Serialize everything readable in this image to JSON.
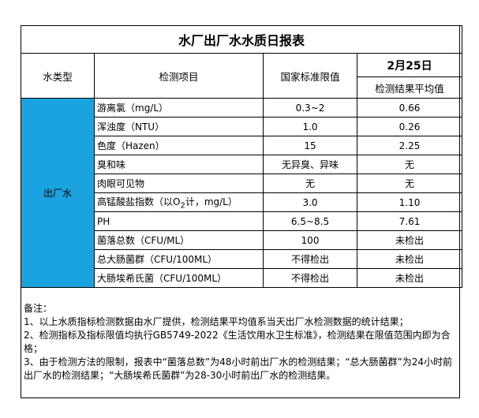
{
  "title": "水厂出厂水水质日报表",
  "headers": {
    "type": "水类型",
    "item": "检测项目",
    "standard": "国家标准限值",
    "date": "2月25日",
    "result": "检测结果平均值"
  },
  "water_type": "出厂水",
  "rows": [
    {
      "item": "游离氯（mg/L）",
      "standard": "0.3~2",
      "result": "0.66"
    },
    {
      "item": "浑浊度（NTU）",
      "standard": "1.0",
      "result": "0.26"
    },
    {
      "item": "色度（Hazen）",
      "standard": "15",
      "result": "2.25"
    },
    {
      "item": "臭和味",
      "standard": "无异臭、异味",
      "result": "无"
    },
    {
      "item": "肉眼可见物",
      "standard": "无",
      "result": "无"
    },
    {
      "item_pre": "高锰酸盐指数（以O",
      "item_sub": "2",
      "item_post": "计，mg/L）",
      "standard": "3.0",
      "result": "1.10"
    },
    {
      "item": "PH",
      "standard": "6.5~8.5",
      "result": "7.61"
    },
    {
      "item": "菌落总数（CFU/ML）",
      "standard": "100",
      "result": "未检出"
    },
    {
      "item": "总大肠菌群（CFU/100ML）",
      "standard": "不得检出",
      "result": "未检出"
    },
    {
      "item": "大肠埃希氏菌（CFU/100ML）",
      "standard": "不得检出",
      "result": "未检出"
    }
  ],
  "notes": {
    "heading": "备注：",
    "lines": [
      "1、以上水质指标检测数据由水厂提供，检测结果平均值系当天出厂水检测数据的统计结果；",
      "2、检测指标及指标限值均执行GB5749-2022《生活饮用水卫生标准》，检测结果在限值范围内即为合格；",
      "3、由于检测方法的限制，报表中“菌落总数”为48小时前出厂水的检测结果；“总大肠菌群”为24小时前出厂水的检测结果；“大肠埃希氏菌群”为28-30小时前出厂水的检测结果。"
    ]
  },
  "colors": {
    "type_cell": "#1ba3e0"
  }
}
